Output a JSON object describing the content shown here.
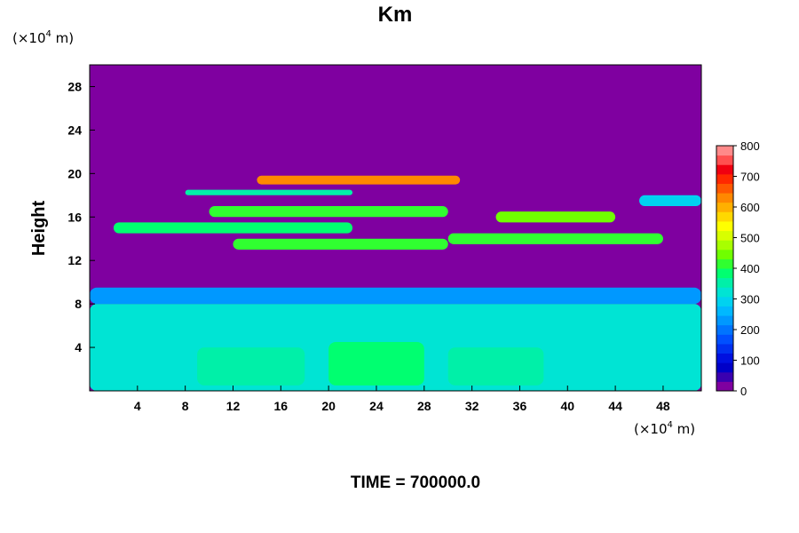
{
  "chart_data": {
    "type": "heatmap",
    "title": "Km",
    "ylabel": "Height",
    "x_unit_prefix": "(×10",
    "x_unit_exp": "4",
    "x_unit_suffix": " m)",
    "y_unit_prefix": "(×10",
    "y_unit_exp": "4",
    "y_unit_suffix": " m)",
    "x_ticks": [
      4,
      8,
      12,
      16,
      20,
      24,
      28,
      32,
      36,
      40,
      44,
      48
    ],
    "y_ticks": [
      4,
      8,
      12,
      16,
      20,
      24,
      28
    ],
    "xlim": [
      0,
      51.2
    ],
    "ylim": [
      0,
      30
    ],
    "colorbar": {
      "ticks": [
        0,
        100,
        200,
        300,
        400,
        500,
        600,
        700,
        800
      ],
      "range": [
        0,
        800
      ],
      "colors": [
        "#7f00a0",
        "#3a00b0",
        "#0000c8",
        "#0010e0",
        "#0030f0",
        "#0050ff",
        "#0074ff",
        "#0098ff",
        "#00b8ff",
        "#00d2f0",
        "#00e4d4",
        "#00f0a8",
        "#00ff70",
        "#30ff30",
        "#70ff00",
        "#a8ff00",
        "#d8ff00",
        "#ffff00",
        "#ffd800",
        "#ffb000",
        "#ff8800",
        "#ff5800",
        "#ff2800",
        "#f00010",
        "#ff5050",
        "#ff8a8a"
      ]
    },
    "bands": [
      {
        "level": 320,
        "x0": 0,
        "x1": 51.2,
        "y0": 0,
        "y1": 8
      },
      {
        "level": 220,
        "x0": 0,
        "x1": 51.2,
        "y0": 8,
        "y1": 9.5
      },
      {
        "level": 360,
        "x0": 9,
        "x1": 18,
        "y0": 0.5,
        "y1": 4
      },
      {
        "level": 380,
        "x0": 20,
        "x1": 28,
        "y0": 0.5,
        "y1": 4.5
      },
      {
        "level": 360,
        "x0": 30,
        "x1": 38,
        "y0": 0.5,
        "y1": 4
      },
      {
        "level": 420,
        "x0": 12,
        "x1": 30,
        "y0": 13,
        "y1": 14
      },
      {
        "level": 380,
        "x0": 2,
        "x1": 22,
        "y0": 14.5,
        "y1": 15.5
      },
      {
        "level": 420,
        "x0": 30,
        "x1": 48,
        "y0": 13.5,
        "y1": 14.5
      },
      {
        "level": 400,
        "x0": 10,
        "x1": 30,
        "y0": 16,
        "y1": 17
      },
      {
        "level": 450,
        "x0": 34,
        "x1": 44,
        "y0": 15.5,
        "y1": 16.5
      },
      {
        "level": 360,
        "x0": 8,
        "x1": 22,
        "y0": 18,
        "y1": 18.5
      },
      {
        "level": 650,
        "x0": 14,
        "x1": 31,
        "y0": 19,
        "y1": 19.8
      },
      {
        "level": 300,
        "x0": 46,
        "x1": 51.2,
        "y0": 17,
        "y1": 18
      }
    ]
  },
  "footer": {
    "time_label": "TIME = 700000.0"
  }
}
